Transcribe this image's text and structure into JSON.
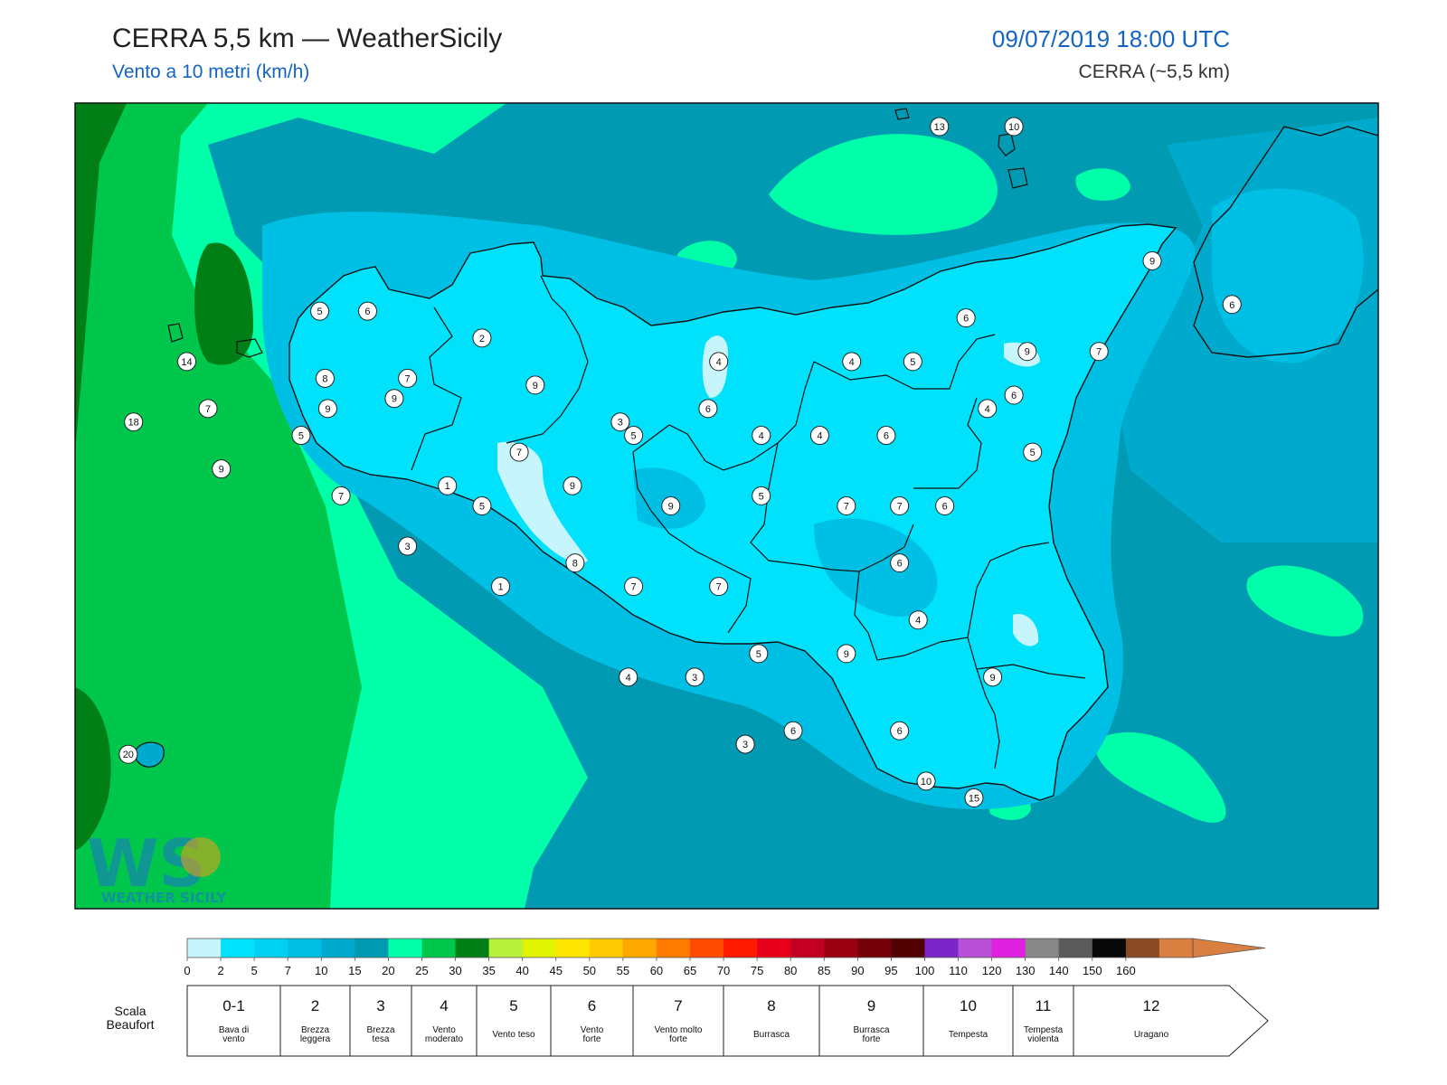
{
  "header": {
    "title": "CERRA 5,5 km — WeatherSicily",
    "subtitle": "Vento a 10 metri (km/h)",
    "datetime": "09/07/2019 18:00 UTC",
    "model": "CERRA (~5,5 km)"
  },
  "logo": {
    "text": "WS",
    "tagline": "WEATHER SICILY"
  },
  "stations": [
    {
      "value": "13",
      "lon": 15.0,
      "lat": 38.63
    },
    {
      "value": "10",
      "lon": 15.28,
      "lat": 38.63
    },
    {
      "value": "5",
      "lon": 12.67,
      "lat": 38.08
    },
    {
      "value": "6",
      "lon": 12.85,
      "lat": 38.08
    },
    {
      "value": "2",
      "lon": 13.28,
      "lat": 38.0
    },
    {
      "value": "14",
      "lon": 12.17,
      "lat": 37.93
    },
    {
      "value": "8",
      "lon": 12.69,
      "lat": 37.88
    },
    {
      "value": "7",
      "lon": 13.0,
      "lat": 37.88
    },
    {
      "value": "9",
      "lon": 13.48,
      "lat": 37.86
    },
    {
      "value": "4",
      "lon": 14.17,
      "lat": 37.93
    },
    {
      "value": "4",
      "lon": 14.67,
      "lat": 37.93
    },
    {
      "value": "5",
      "lon": 14.9,
      "lat": 37.93
    },
    {
      "value": "9",
      "lon": 15.8,
      "lat": 38.23
    },
    {
      "value": "6",
      "lon": 16.1,
      "lat": 38.1
    },
    {
      "value": "6",
      "lon": 15.1,
      "lat": 38.06
    },
    {
      "value": "9",
      "lon": 15.33,
      "lat": 37.96
    },
    {
      "value": "7",
      "lon": 15.6,
      "lat": 37.96
    },
    {
      "value": "9",
      "lon": 12.95,
      "lat": 37.82
    },
    {
      "value": "7",
      "lon": 12.25,
      "lat": 37.79
    },
    {
      "value": "9",
      "lon": 12.7,
      "lat": 37.79
    },
    {
      "value": "3",
      "lon": 13.8,
      "lat": 37.75
    },
    {
      "value": "6",
      "lon": 14.13,
      "lat": 37.79
    },
    {
      "value": "6",
      "lon": 15.28,
      "lat": 37.83
    },
    {
      "value": "4",
      "lon": 15.18,
      "lat": 37.79
    },
    {
      "value": "18",
      "lon": 11.97,
      "lat": 37.75
    },
    {
      "value": "5",
      "lon": 12.6,
      "lat": 37.71
    },
    {
      "value": "5",
      "lon": 13.85,
      "lat": 37.71
    },
    {
      "value": "4",
      "lon": 14.33,
      "lat": 37.71
    },
    {
      "value": "4",
      "lon": 14.55,
      "lat": 37.71
    },
    {
      "value": "6",
      "lon": 14.8,
      "lat": 37.71
    },
    {
      "value": "7",
      "lon": 13.42,
      "lat": 37.66
    },
    {
      "value": "5",
      "lon": 15.35,
      "lat": 37.66
    },
    {
      "value": "9",
      "lon": 12.3,
      "lat": 37.61
    },
    {
      "value": "1",
      "lon": 13.15,
      "lat": 37.56
    },
    {
      "value": "9",
      "lon": 13.62,
      "lat": 37.56
    },
    {
      "value": "7",
      "lon": 12.75,
      "lat": 37.53
    },
    {
      "value": "5",
      "lon": 14.33,
      "lat": 37.53
    },
    {
      "value": "5",
      "lon": 13.28,
      "lat": 37.5
    },
    {
      "value": "9",
      "lon": 13.99,
      "lat": 37.5
    },
    {
      "value": "7",
      "lon": 14.65,
      "lat": 37.5
    },
    {
      "value": "7",
      "lon": 14.85,
      "lat": 37.5
    },
    {
      "value": "6",
      "lon": 15.02,
      "lat": 37.5
    },
    {
      "value": "3",
      "lon": 13.0,
      "lat": 37.38
    },
    {
      "value": "8",
      "lon": 13.63,
      "lat": 37.33
    },
    {
      "value": "6",
      "lon": 14.85,
      "lat": 37.33
    },
    {
      "value": "1",
      "lon": 13.35,
      "lat": 37.26
    },
    {
      "value": "7",
      "lon": 13.85,
      "lat": 37.26
    },
    {
      "value": "7",
      "lon": 14.17,
      "lat": 37.26
    },
    {
      "value": "4",
      "lon": 14.92,
      "lat": 37.16
    },
    {
      "value": "5",
      "lon": 14.32,
      "lat": 37.06
    },
    {
      "value": "9",
      "lon": 14.65,
      "lat": 37.06
    },
    {
      "value": "4",
      "lon": 13.83,
      "lat": 36.99
    },
    {
      "value": "3",
      "lon": 14.08,
      "lat": 36.99
    },
    {
      "value": "9",
      "lon": 15.2,
      "lat": 36.99
    },
    {
      "value": "6",
      "lon": 14.45,
      "lat": 36.83
    },
    {
      "value": "6",
      "lon": 14.85,
      "lat": 36.83
    },
    {
      "value": "3",
      "lon": 14.27,
      "lat": 36.79
    },
    {
      "value": "20",
      "lon": 11.95,
      "lat": 36.76
    },
    {
      "value": "10",
      "lon": 14.95,
      "lat": 36.68
    },
    {
      "value": "15",
      "lon": 15.13,
      "lat": 36.63
    }
  ],
  "legend": {
    "colors": [
      "#c6f5fb",
      "#00e1fb",
      "#00d0f1",
      "#00bfe4",
      "#00aacc",
      "#009ab2",
      "#00ffa8",
      "#00c74c",
      "#007f16",
      "#b8f03c",
      "#e0f300",
      "#ffe600",
      "#ffca00",
      "#ffa800",
      "#ff7a00",
      "#ff4a00",
      "#ff1a00",
      "#e8001a",
      "#c40022",
      "#9a0012",
      "#760008",
      "#500000",
      "#7a26c8",
      "#b850d6",
      "#e020e0",
      "#888888",
      "#5a5a5a",
      "#080808",
      "#8a4a26",
      "#d98040"
    ],
    "ticks": [
      "0",
      "2",
      "5",
      "7",
      "10",
      "15",
      "20",
      "25",
      "30",
      "35",
      "40",
      "45",
      "50",
      "55",
      "60",
      "65",
      "70",
      "75",
      "80",
      "85",
      "90",
      "95",
      "100",
      "110",
      "120",
      "130",
      "140",
      "150",
      "160"
    ]
  },
  "beaufort": {
    "label_line1": "Scala",
    "label_line2": "Beaufort",
    "cells": [
      {
        "num": "0-1",
        "desc": [
          "Bava di",
          "vento"
        ]
      },
      {
        "num": "2",
        "desc": [
          "Brezza",
          "leggera"
        ]
      },
      {
        "num": "3",
        "desc": [
          "Brezza",
          "tesa"
        ]
      },
      {
        "num": "4",
        "desc": [
          "Vento",
          "moderato"
        ]
      },
      {
        "num": "5",
        "desc": [
          "Vento teso"
        ]
      },
      {
        "num": "6",
        "desc": [
          "Vento",
          "forte"
        ]
      },
      {
        "num": "7",
        "desc": [
          "Vento molto",
          "forte"
        ]
      },
      {
        "num": "8",
        "desc": [
          "Burrasca"
        ]
      },
      {
        "num": "9",
        "desc": [
          "Burrasca",
          "forte"
        ]
      },
      {
        "num": "10",
        "desc": [
          "Tempesta"
        ]
      },
      {
        "num": "11",
        "desc": [
          "Tempesta",
          "violenta"
        ]
      },
      {
        "num": "12",
        "desc": [
          "Uragano"
        ]
      }
    ]
  }
}
